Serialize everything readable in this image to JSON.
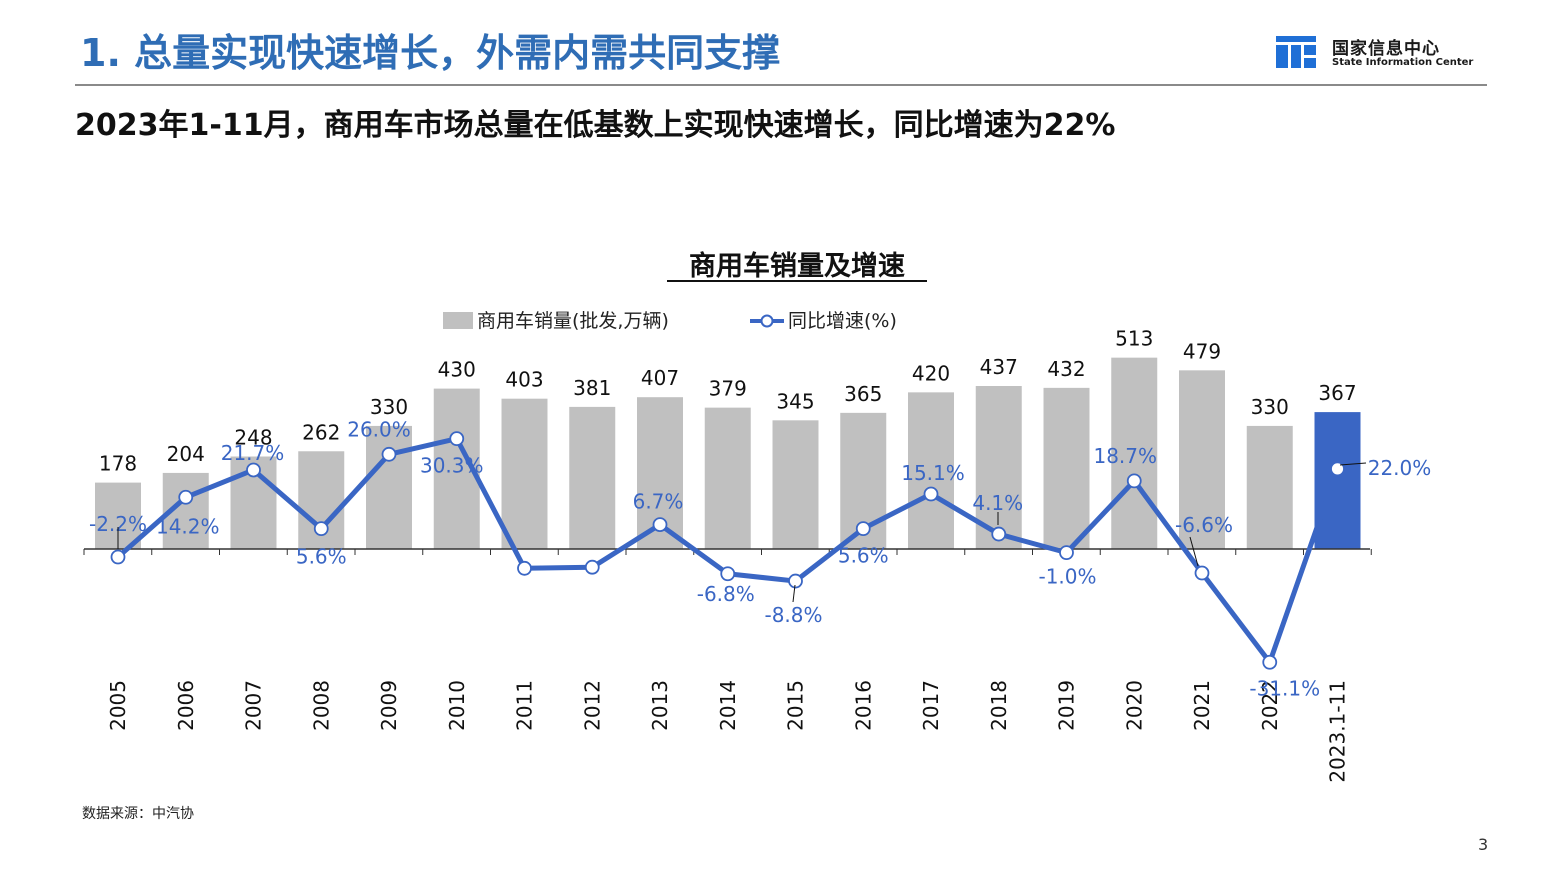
{
  "header": {
    "title": "1. 总量实现快速增长，外需内需共同支撑",
    "logo_cn": "国家信息中心",
    "logo_en": "State Information Center",
    "logo_color": "#1f6fd6"
  },
  "subtitle": "2023年1-11月，商用车市场总量在低基数上实现快速增长，同比增速为22%",
  "chart_data": {
    "type": "bar",
    "title": "商用车销量及增速",
    "categories": [
      "2005",
      "2006",
      "2007",
      "2008",
      "2009",
      "2010",
      "2011",
      "2012",
      "2013",
      "2014",
      "2015",
      "2016",
      "2017",
      "2018",
      "2019",
      "2020",
      "2021",
      "2022",
      "2023.1-11"
    ],
    "series": [
      {
        "name": "商用车销量(批发,万辆)",
        "type": "bar",
        "values": [
          178,
          204,
          248,
          262,
          330,
          430,
          403,
          381,
          407,
          379,
          345,
          365,
          420,
          437,
          432,
          513,
          479,
          330,
          367
        ],
        "color": "#c0c0c0",
        "highlight_color": "#3a66c4",
        "data_labels": [
          "178",
          "204",
          "248",
          "262",
          "330",
          "430",
          "403",
          "381",
          "407",
          "379",
          "345",
          "365",
          "420",
          "437",
          "432",
          "513",
          "479",
          "330",
          "367"
        ]
      },
      {
        "name": "同比增速(%)",
        "type": "line",
        "values": [
          -2.2,
          14.2,
          21.7,
          5.6,
          26.0,
          30.3,
          -5.3,
          -5.0,
          6.7,
          -6.8,
          -8.8,
          5.6,
          15.1,
          4.1,
          -1.0,
          18.7,
          -6.6,
          -31.1,
          22.0
        ],
        "color": "#3a66c4",
        "data_labels": [
          "-2.2%",
          "14.2%",
          "21.7%",
          "5.6%",
          "26.0%",
          "30.3%",
          "",
          "",
          "6.7%",
          "-6.8%",
          "-8.8%",
          "5.6%",
          "15.1%",
          "4.1%",
          "-1.0%",
          "18.7%",
          "-6.6%",
          "-31.1%",
          "22.0%"
        ]
      }
    ],
    "legend_position": "top-center",
    "grid": false
  },
  "footer": {
    "source": "数据来源：中汽协",
    "page_number": "3"
  }
}
